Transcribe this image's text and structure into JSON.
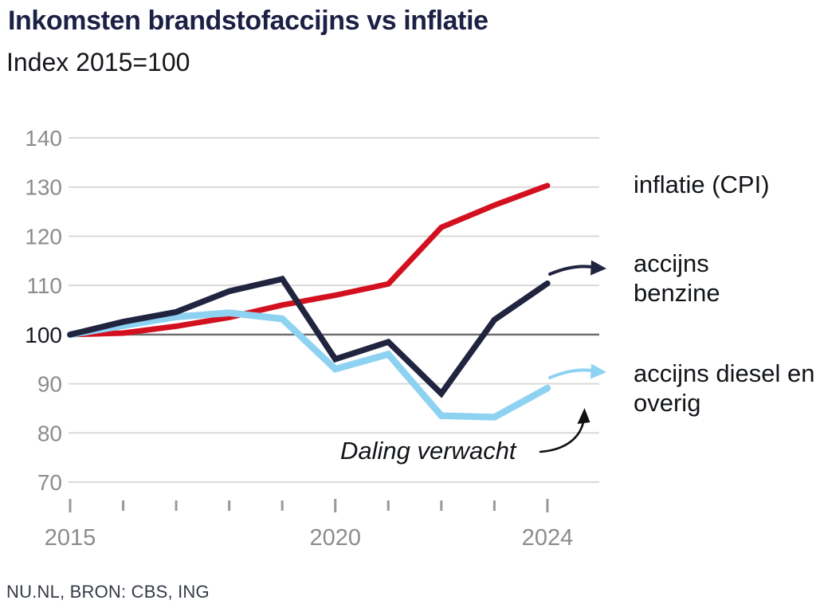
{
  "header": {
    "title": "Inkomsten brandstofaccijns vs inflatie",
    "subtitle": "Index 2015=100"
  },
  "footer": {
    "source": "NU.NL, BRON: CBS, ING"
  },
  "annotation": {
    "text": "Daling verwacht"
  },
  "colors": {
    "grid": "#d9d9d9",
    "baseline_grid": "#6f6f6f",
    "tick": "#999999",
    "axis_label": "#8c8c8c",
    "axis_label_emphasis": "#15181f",
    "title_text": "#1b2044",
    "body_text": "#111418",
    "annotation_arrow": "#111111"
  },
  "chart_data": {
    "type": "line",
    "title": "Inkomsten brandstofaccijns vs inflatie",
    "subtitle": "Index 2015=100",
    "x": [
      2015,
      2016,
      2017,
      2018,
      2019,
      2020,
      2021,
      2022,
      2023,
      2024
    ],
    "xtick_labels": [
      2015,
      2020,
      2024
    ],
    "ylim": [
      70,
      140
    ],
    "yticks": [
      70,
      80,
      90,
      100,
      110,
      120,
      130,
      140
    ],
    "baseline": 100,
    "grid": "horizontal",
    "legend_position": "right",
    "source": "NU.NL, BRON: CBS, ING",
    "series": [
      {
        "name": "inflatie (CPI)",
        "color": "#d3101f",
        "stroke_width": 7,
        "values": [
          100,
          100.3,
          101.7,
          103.5,
          106,
          108,
          110.3,
          121.8,
          126.3,
          130.3
        ]
      },
      {
        "name": "accijns diesel en overig",
        "color": "#8ed2f2",
        "stroke_width": 8.5,
        "values": [
          100,
          101.8,
          103.6,
          104.4,
          103.2,
          93,
          96,
          83.5,
          83.2,
          89.1
        ]
      },
      {
        "name": "accijns benzine",
        "color": "#20243f",
        "stroke_width": 7.5,
        "values": [
          100,
          102.6,
          104.6,
          108.8,
          111.3,
          95,
          98.5,
          88,
          103,
          110.4
        ]
      }
    ],
    "annotation": "Daling verwacht"
  }
}
